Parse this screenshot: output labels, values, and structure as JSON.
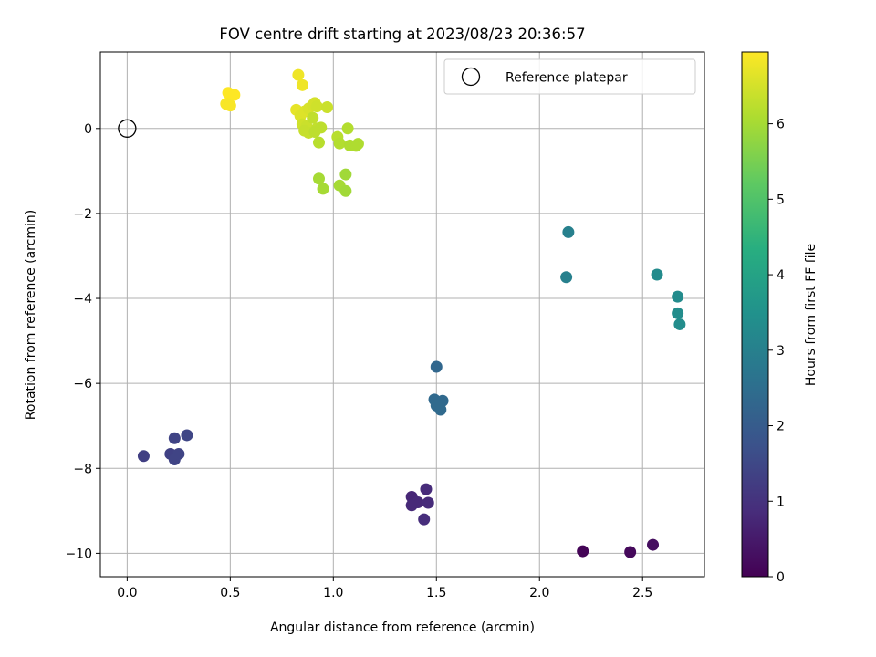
{
  "chart_data": {
    "type": "scatter",
    "title": "FOV centre drift starting at 2023/08/23 20:36:57",
    "xlabel": "Angular distance from reference (arcmin)",
    "ylabel": "Rotation from reference (arcmin)",
    "xlim": [
      -0.13,
      2.8
    ],
    "ylim": [
      -10.55,
      1.8
    ],
    "xticks": [
      {
        "value": 0.0,
        "label": "0.0"
      },
      {
        "value": 0.5,
        "label": "0.5"
      },
      {
        "value": 1.0,
        "label": "1.0"
      },
      {
        "value": 1.5,
        "label": "1.5"
      },
      {
        "value": 2.0,
        "label": "2.0"
      },
      {
        "value": 2.5,
        "label": "2.5"
      }
    ],
    "yticks": [
      {
        "value": 0,
        "label": "0"
      },
      {
        "value": -2,
        "label": "−2"
      },
      {
        "value": -4,
        "label": "−4"
      },
      {
        "value": -6,
        "label": "−6"
      },
      {
        "value": -8,
        "label": "−8"
      },
      {
        "value": -10,
        "label": "−10"
      }
    ],
    "grid": true,
    "legend": {
      "placement": "top-right",
      "entries": [
        "Reference platepar"
      ]
    },
    "reference_point": {
      "x": 0.0,
      "y": 0.0
    },
    "colorbar": {
      "label": "Hours from first FF file",
      "colormap": "viridis",
      "min": 0,
      "max": 6.95,
      "ticks": [
        {
          "value": 0,
          "label": "0"
        },
        {
          "value": 1,
          "label": "1"
        },
        {
          "value": 2,
          "label": "2"
        },
        {
          "value": 3,
          "label": "3"
        },
        {
          "value": 4,
          "label": "4"
        },
        {
          "value": 5,
          "label": "5"
        },
        {
          "value": 6,
          "label": "6"
        }
      ]
    },
    "points": [
      {
        "x": 2.21,
        "y": -9.95,
        "c": 0.05
      },
      {
        "x": 2.44,
        "y": -9.97,
        "c": 0.15
      },
      {
        "x": 2.55,
        "y": -9.8,
        "c": 0.25
      },
      {
        "x": 1.38,
        "y": -8.67,
        "c": 0.75
      },
      {
        "x": 1.41,
        "y": -8.8,
        "c": 0.8
      },
      {
        "x": 1.38,
        "y": -8.87,
        "c": 0.8
      },
      {
        "x": 1.45,
        "y": -8.49,
        "c": 0.85
      },
      {
        "x": 1.46,
        "y": -8.81,
        "c": 0.85
      },
      {
        "x": 1.44,
        "y": -9.2,
        "c": 0.9
      },
      {
        "x": 0.08,
        "y": -7.71,
        "c": 1.3
      },
      {
        "x": 0.21,
        "y": -7.66,
        "c": 1.35
      },
      {
        "x": 0.23,
        "y": -7.79,
        "c": 1.4
      },
      {
        "x": 0.25,
        "y": -7.66,
        "c": 1.4
      },
      {
        "x": 0.23,
        "y": -7.29,
        "c": 1.4
      },
      {
        "x": 0.29,
        "y": -7.22,
        "c": 1.45
      },
      {
        "x": 1.5,
        "y": -5.61,
        "c": 2.3
      },
      {
        "x": 1.49,
        "y": -6.38,
        "c": 2.35
      },
      {
        "x": 1.53,
        "y": -6.41,
        "c": 2.35
      },
      {
        "x": 1.5,
        "y": -6.52,
        "c": 2.4
      },
      {
        "x": 1.52,
        "y": -6.62,
        "c": 2.4
      },
      {
        "x": 2.14,
        "y": -2.44,
        "c": 3.0
      },
      {
        "x": 2.13,
        "y": -3.5,
        "c": 3.0
      },
      {
        "x": 2.57,
        "y": -3.44,
        "c": 3.3
      },
      {
        "x": 2.67,
        "y": -3.96,
        "c": 3.3
      },
      {
        "x": 2.67,
        "y": -4.35,
        "c": 3.35
      },
      {
        "x": 2.68,
        "y": -4.61,
        "c": 3.35
      },
      {
        "x": 0.83,
        "y": 1.26,
        "c": 6.8
      },
      {
        "x": 0.85,
        "y": 1.02,
        "c": 6.8
      },
      {
        "x": 0.49,
        "y": 0.84,
        "c": 6.95
      },
      {
        "x": 0.52,
        "y": 0.79,
        "c": 6.95
      },
      {
        "x": 0.48,
        "y": 0.58,
        "c": 6.9
      },
      {
        "x": 0.5,
        "y": 0.54,
        "c": 6.9
      },
      {
        "x": 0.82,
        "y": 0.44,
        "c": 6.7
      },
      {
        "x": 0.84,
        "y": 0.3,
        "c": 6.6
      },
      {
        "x": 0.86,
        "y": 0.4,
        "c": 6.6
      },
      {
        "x": 0.88,
        "y": 0.47,
        "c": 6.55
      },
      {
        "x": 0.9,
        "y": 0.55,
        "c": 6.5
      },
      {
        "x": 0.91,
        "y": 0.6,
        "c": 6.5
      },
      {
        "x": 0.92,
        "y": 0.52,
        "c": 6.45
      },
      {
        "x": 0.97,
        "y": 0.5,
        "c": 6.4
      },
      {
        "x": 0.85,
        "y": 0.1,
        "c": 6.45
      },
      {
        "x": 0.87,
        "y": 0.05,
        "c": 6.4
      },
      {
        "x": 0.86,
        "y": -0.05,
        "c": 6.35
      },
      {
        "x": 0.88,
        "y": -0.1,
        "c": 6.35
      },
      {
        "x": 0.9,
        "y": 0.25,
        "c": 6.3
      },
      {
        "x": 0.92,
        "y": 0.0,
        "c": 6.3
      },
      {
        "x": 0.94,
        "y": 0.02,
        "c": 6.25
      },
      {
        "x": 0.91,
        "y": -0.08,
        "c": 6.25
      },
      {
        "x": 0.93,
        "y": -0.33,
        "c": 6.2
      },
      {
        "x": 1.02,
        "y": -0.2,
        "c": 6.2
      },
      {
        "x": 1.03,
        "y": -0.35,
        "c": 6.15
      },
      {
        "x": 1.07,
        "y": 0.0,
        "c": 6.15
      },
      {
        "x": 1.08,
        "y": -0.4,
        "c": 6.1
      },
      {
        "x": 1.11,
        "y": -0.41,
        "c": 6.1
      },
      {
        "x": 1.12,
        "y": -0.36,
        "c": 6.1
      },
      {
        "x": 0.93,
        "y": -1.18,
        "c": 6.0
      },
      {
        "x": 0.95,
        "y": -1.42,
        "c": 6.0
      },
      {
        "x": 1.03,
        "y": -1.34,
        "c": 6.0
      },
      {
        "x": 1.06,
        "y": -1.47,
        "c": 5.95
      },
      {
        "x": 1.06,
        "y": -1.08,
        "c": 5.95
      }
    ]
  }
}
